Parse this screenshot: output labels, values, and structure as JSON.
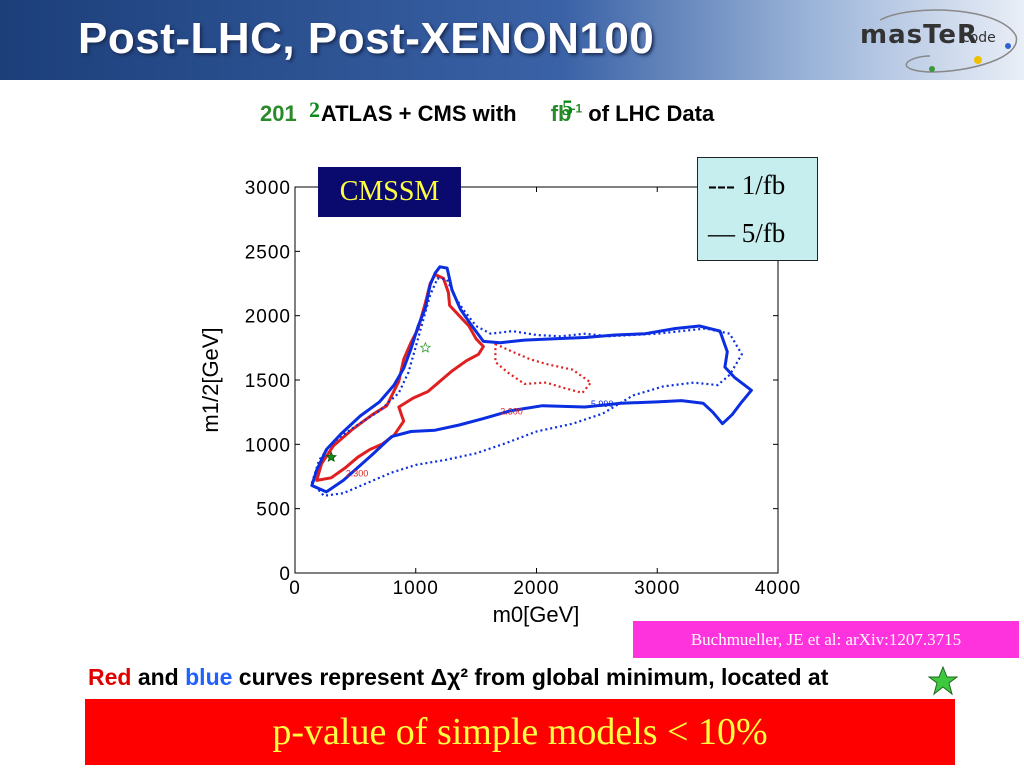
{
  "header": {
    "title": "Post-LHC, Post-XENON100",
    "logo_text": "masTeR",
    "logo_sub": "code"
  },
  "subtitle": {
    "year_prefix": "201",
    "year_overlay": "2",
    "mid_text": "ATLAS + CMS with",
    "fb_overlay": "5",
    "unit": "fb",
    "unit_sup": "-1",
    "end_text": "of LHC Data"
  },
  "chart_data": {
    "type": "contour",
    "xlabel": "m0[GeV]",
    "ylabel": "m1/2[GeV]",
    "xlim": [
      0,
      4000
    ],
    "ylim": [
      0,
      3000
    ],
    "xticks": [
      "0",
      "1000",
      "2000",
      "3000",
      "4000"
    ],
    "yticks": [
      "0",
      "500",
      "1000",
      "1500",
      "2000",
      "2500",
      "3000"
    ],
    "model_label": "CMSSM",
    "legend": [
      "--- 1/fb",
      "— 5/fb"
    ],
    "contour_labels": [
      "2.300",
      "5.990"
    ],
    "best_fit_1fb": {
      "x": 300,
      "y": 900
    },
    "best_fit_5fb": {
      "x": 1080,
      "y": 1750
    },
    "series": [
      {
        "name": "red solid",
        "color": "#e02020",
        "dash": "solid",
        "points": [
          [
            180,
            720
          ],
          [
            220,
            850
          ],
          [
            320,
            990
          ],
          [
            480,
            1120
          ],
          [
            640,
            1230
          ],
          [
            760,
            1300
          ],
          [
            860,
            1490
          ],
          [
            900,
            1660
          ],
          [
            960,
            1790
          ],
          [
            1020,
            1900
          ],
          [
            1080,
            2100
          ],
          [
            1120,
            2250
          ],
          [
            1160,
            2320
          ],
          [
            1230,
            2290
          ],
          [
            1270,
            2180
          ],
          [
            1280,
            2080
          ],
          [
            1360,
            2000
          ],
          [
            1440,
            1920
          ],
          [
            1500,
            1820
          ],
          [
            1560,
            1760
          ],
          [
            1520,
            1700
          ],
          [
            1420,
            1650
          ],
          [
            1300,
            1570
          ],
          [
            1200,
            1490
          ],
          [
            1100,
            1410
          ],
          [
            980,
            1360
          ],
          [
            860,
            1290
          ],
          [
            900,
            1180
          ],
          [
            820,
            1070
          ],
          [
            720,
            1000
          ],
          [
            620,
            960
          ],
          [
            520,
            900
          ],
          [
            420,
            820
          ],
          [
            300,
            740
          ],
          [
            180,
            720
          ]
        ]
      },
      {
        "name": "red dotted",
        "color": "#e02020",
        "dash": "dotted",
        "points": [
          [
            1660,
            1780
          ],
          [
            1800,
            1720
          ],
          [
            1950,
            1660
          ],
          [
            2100,
            1620
          ],
          [
            2300,
            1580
          ],
          [
            2450,
            1480
          ],
          [
            2380,
            1400
          ],
          [
            2220,
            1440
          ],
          [
            2080,
            1480
          ],
          [
            1900,
            1470
          ],
          [
            1760,
            1560
          ],
          [
            1660,
            1640
          ],
          [
            1660,
            1780
          ]
        ]
      },
      {
        "name": "blue solid",
        "color": "#0a2ee0",
        "dash": "solid",
        "points": [
          [
            140,
            680
          ],
          [
            180,
            800
          ],
          [
            260,
            960
          ],
          [
            380,
            1080
          ],
          [
            540,
            1220
          ],
          [
            700,
            1330
          ],
          [
            820,
            1460
          ],
          [
            900,
            1590
          ],
          [
            960,
            1740
          ],
          [
            1020,
            1920
          ],
          [
            1080,
            2060
          ],
          [
            1120,
            2240
          ],
          [
            1160,
            2330
          ],
          [
            1200,
            2380
          ],
          [
            1260,
            2370
          ],
          [
            1300,
            2200
          ],
          [
            1370,
            2050
          ],
          [
            1450,
            1940
          ],
          [
            1560,
            1800
          ],
          [
            1700,
            1790
          ],
          [
            1900,
            1810
          ],
          [
            2150,
            1820
          ],
          [
            2400,
            1830
          ],
          [
            2650,
            1850
          ],
          [
            2900,
            1860
          ],
          [
            3150,
            1900
          ],
          [
            3350,
            1920
          ],
          [
            3520,
            1880
          ],
          [
            3580,
            1720
          ],
          [
            3560,
            1600
          ],
          [
            3640,
            1520
          ],
          [
            3780,
            1420
          ],
          [
            3700,
            1330
          ],
          [
            3620,
            1230
          ],
          [
            3540,
            1160
          ],
          [
            3460,
            1250
          ],
          [
            3380,
            1320
          ],
          [
            3200,
            1340
          ],
          [
            3000,
            1330
          ],
          [
            2700,
            1320
          ],
          [
            2400,
            1290
          ],
          [
            2050,
            1300
          ],
          [
            1780,
            1260
          ],
          [
            1560,
            1200
          ],
          [
            1360,
            1150
          ],
          [
            1160,
            1110
          ],
          [
            960,
            1100
          ],
          [
            800,
            1060
          ],
          [
            640,
            920
          ],
          [
            520,
            820
          ],
          [
            400,
            720
          ],
          [
            260,
            630
          ],
          [
            140,
            680
          ]
        ]
      },
      {
        "name": "blue dotted",
        "color": "#0a2ee0",
        "dash": "dotted",
        "points": [
          [
            140,
            700
          ],
          [
            200,
            880
          ],
          [
            320,
            1020
          ],
          [
            500,
            1140
          ],
          [
            700,
            1260
          ],
          [
            860,
            1400
          ],
          [
            940,
            1560
          ],
          [
            1000,
            1760
          ],
          [
            1060,
            1960
          ],
          [
            1120,
            2160
          ],
          [
            1180,
            2290
          ],
          [
            1260,
            2280
          ],
          [
            1320,
            2150
          ],
          [
            1400,
            2040
          ],
          [
            1500,
            1920
          ],
          [
            1620,
            1860
          ],
          [
            1800,
            1880
          ],
          [
            2000,
            1850
          ],
          [
            2200,
            1840
          ],
          [
            2400,
            1860
          ],
          [
            2600,
            1840
          ],
          [
            2800,
            1850
          ],
          [
            3000,
            1860
          ],
          [
            3200,
            1880
          ],
          [
            3400,
            1900
          ],
          [
            3600,
            1860
          ],
          [
            3700,
            1700
          ],
          [
            3600,
            1540
          ],
          [
            3500,
            1460
          ],
          [
            3300,
            1480
          ],
          [
            3050,
            1450
          ],
          [
            2800,
            1380
          ],
          [
            2550,
            1240
          ],
          [
            2300,
            1160
          ],
          [
            2000,
            1100
          ],
          [
            1750,
            1010
          ],
          [
            1500,
            930
          ],
          [
            1250,
            880
          ],
          [
            1000,
            840
          ],
          [
            800,
            780
          ],
          [
            600,
            700
          ],
          [
            400,
            620
          ],
          [
            240,
            600
          ],
          [
            140,
            700
          ]
        ]
      }
    ]
  },
  "legend": {
    "line1": "--- 1/fb",
    "line2": "— 5/fb"
  },
  "model_label": "CMSSM",
  "citation": "Buchmueller, JE et al: arXiv:1207.3715",
  "caption": {
    "red": "Red",
    "and": "and",
    "blue": "blue",
    "rest": "curves represent Δχ² from global minimum, located at"
  },
  "banner": "p-value of simple models < 10%",
  "colors": {
    "header_bg": "#2d5499",
    "banner_bg": "#ff0000",
    "banner_text": "#ffff40",
    "citation_bg": "#ff33dd",
    "cmssm_bg": "#0a0a6e",
    "legend_bg": "#c7eeee",
    "red_curve": "#e02020",
    "blue_curve": "#0a2ee0",
    "star_green": "#3ec83e"
  }
}
